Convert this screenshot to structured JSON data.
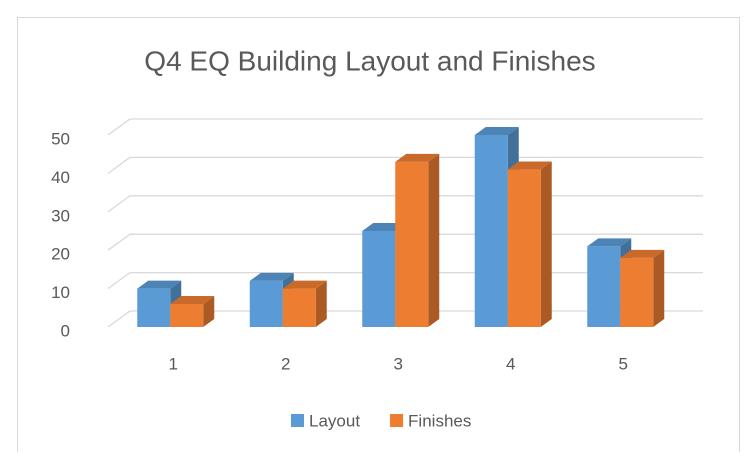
{
  "chart_data": {
    "type": "bar3d",
    "title": "Q4 EQ Building Layout and Finishes",
    "categories": [
      "1",
      "2",
      "3",
      "4",
      "5"
    ],
    "series": [
      {
        "name": "Layout",
        "color": "#5b9bd5",
        "values": [
          10,
          12,
          25,
          50,
          21
        ]
      },
      {
        "name": "Finishes",
        "color": "#ed7d31",
        "values": [
          6,
          10,
          43,
          41,
          18
        ]
      }
    ],
    "ylim": [
      0,
      50
    ],
    "yticks": [
      0,
      10,
      20,
      30,
      40,
      50
    ],
    "grid": true,
    "legend": "bottom"
  }
}
